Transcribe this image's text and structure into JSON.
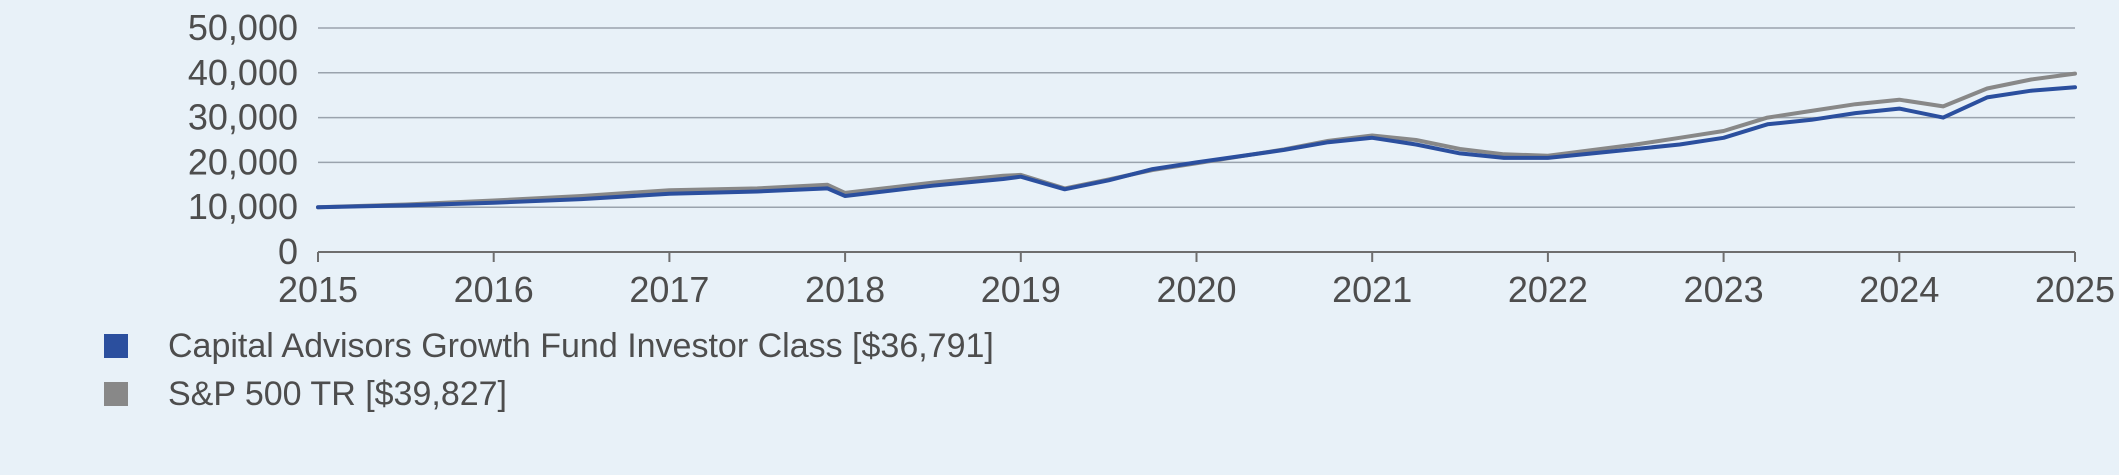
{
  "chart_data": {
    "type": "line",
    "title": "",
    "xlabel": "",
    "ylabel": "",
    "xlim": [
      2015,
      2025
    ],
    "ylim": [
      0,
      50000
    ],
    "y_ticks": [
      "0",
      "10,000",
      "20,000",
      "30,000",
      "40,000",
      "50,000"
    ],
    "x_ticks": [
      "2015",
      "2016",
      "2017",
      "2018",
      "2019",
      "2020",
      "2021",
      "2022",
      "2023",
      "2024",
      "2025"
    ],
    "grid": "horizontal",
    "legend_position": "bottom-left",
    "series": [
      {
        "name": "Capital Advisors Growth Fund Investor Class [$36,791]",
        "color": "#2b4f9e",
        "x": [
          2015.0,
          2015.5,
          2016.0,
          2016.5,
          2017.0,
          2017.5,
          2017.9,
          2018.0,
          2018.5,
          2018.9,
          2019.0,
          2019.25,
          2019.5,
          2019.75,
          2020.0,
          2020.5,
          2020.75,
          2021.0,
          2021.25,
          2021.5,
          2021.75,
          2022.0,
          2022.5,
          2022.75,
          2023.0,
          2023.25,
          2023.5,
          2023.75,
          2024.0,
          2024.25,
          2024.5,
          2024.75,
          2025.0
        ],
        "y": [
          10000,
          10400,
          11000,
          11800,
          13000,
          13500,
          14200,
          12500,
          14800,
          16300,
          16800,
          14000,
          16000,
          18500,
          20000,
          22800,
          24500,
          25500,
          24000,
          22000,
          21000,
          21000,
          23000,
          24000,
          25500,
          28500,
          29500,
          31000,
          32000,
          30000,
          34500,
          36000,
          36791
        ]
      },
      {
        "name": "S&P 500 TR [$39,827]",
        "color": "#888888",
        "x": [
          2015.0,
          2015.5,
          2016.0,
          2016.5,
          2017.0,
          2017.5,
          2017.9,
          2018.0,
          2018.5,
          2018.9,
          2019.0,
          2019.25,
          2019.5,
          2019.75,
          2020.0,
          2020.5,
          2020.75,
          2021.0,
          2021.25,
          2021.5,
          2021.75,
          2022.0,
          2022.5,
          2022.75,
          2023.0,
          2023.25,
          2023.5,
          2023.75,
          2024.0,
          2024.25,
          2024.5,
          2024.75,
          2025.0
        ],
        "y": [
          10000,
          10600,
          11500,
          12500,
          13800,
          14200,
          15000,
          13200,
          15500,
          17000,
          17200,
          14200,
          16200,
          18300,
          19800,
          22900,
          24800,
          26000,
          25000,
          23000,
          21800,
          21500,
          24000,
          25500,
          27000,
          30000,
          31500,
          33000,
          34000,
          32500,
          36500,
          38500,
          39827
        ]
      }
    ]
  }
}
